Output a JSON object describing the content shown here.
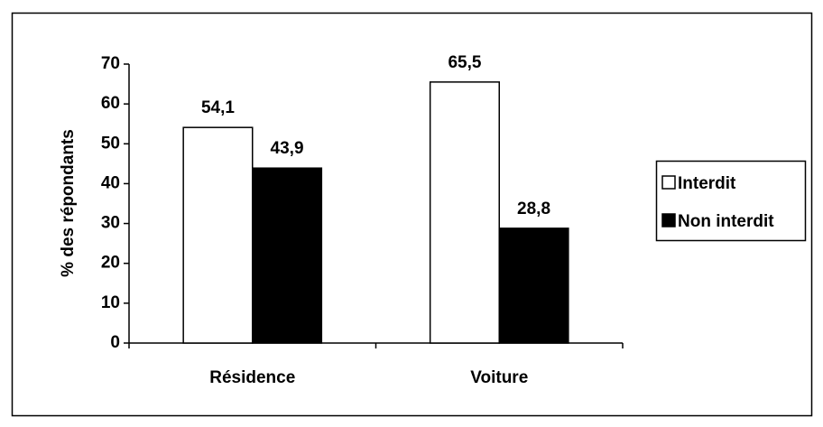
{
  "chart_data": {
    "type": "bar",
    "title": "",
    "xlabel": "",
    "ylabel": "% des répondants",
    "ylim": [
      0,
      70
    ],
    "yticks": [
      0,
      10,
      20,
      30,
      40,
      50,
      60,
      70
    ],
    "categories": [
      "Résidence",
      "Voiture"
    ],
    "series": [
      {
        "name": "Interdit",
        "values": [
          54.1,
          65.5
        ],
        "value_labels": [
          "54,1",
          "65,5"
        ],
        "color": "#ffffff"
      },
      {
        "name": "Non interdit",
        "values": [
          43.9,
          28.8
        ],
        "value_labels": [
          "43,9",
          "28,8"
        ],
        "color": "#000000"
      }
    ],
    "grid": false,
    "legend_position": "right"
  }
}
